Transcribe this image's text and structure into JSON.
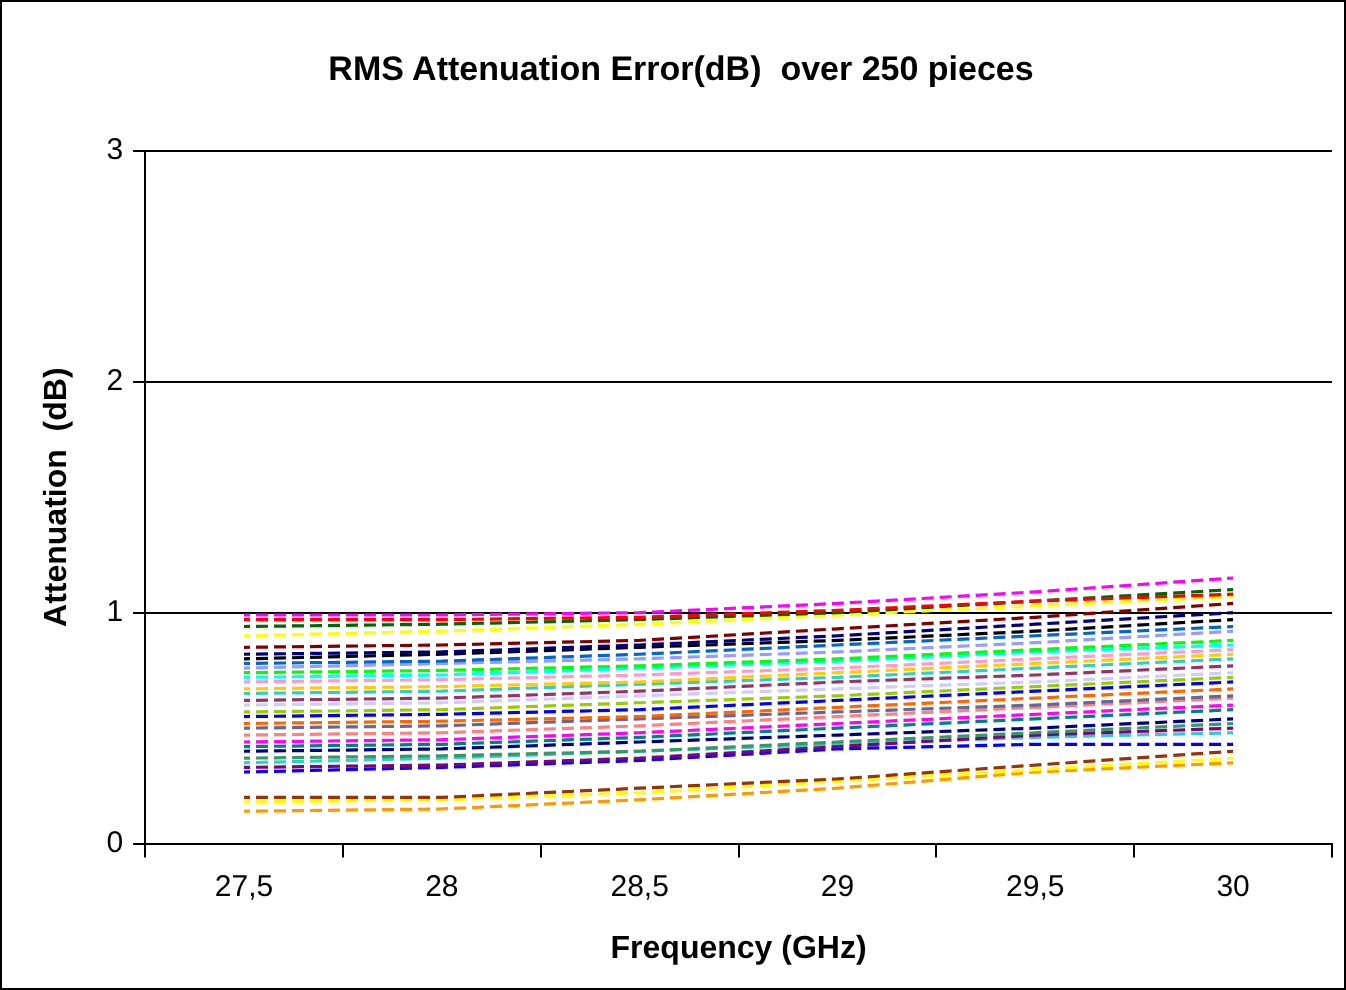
{
  "chart_data": {
    "type": "line",
    "title": "RMS Attenuation Error(dB)  over 250 pieces",
    "xlabel": "Frequency (GHz)",
    "ylabel": "Attenuation  (dB)",
    "categories": [
      "27,5",
      "28",
      "28,5",
      "29",
      "29,5",
      "30"
    ],
    "ylim": [
      0,
      3
    ],
    "yticks": [
      0,
      1,
      2,
      3
    ],
    "grid": "y",
    "legend": false,
    "marker": "none",
    "line_style": "dashed",
    "series": [
      {
        "color": "#ff00ff",
        "values": [
          0.99,
          0.99,
          1.0,
          1.04,
          1.09,
          1.15
        ]
      },
      {
        "color": "#ff0000",
        "values": [
          0.97,
          0.97,
          0.98,
          1.01,
          1.05,
          1.08
        ]
      },
      {
        "color": "#006600",
        "values": [
          0.94,
          0.95,
          0.97,
          1.0,
          1.05,
          1.1
        ]
      },
      {
        "color": "#ffff00",
        "values": [
          0.9,
          0.92,
          0.95,
          0.99,
          1.03,
          1.07
        ]
      },
      {
        "color": "#800000",
        "values": [
          0.85,
          0.86,
          0.88,
          0.93,
          0.98,
          1.04
        ]
      },
      {
        "color": "#000080",
        "values": [
          0.82,
          0.83,
          0.86,
          0.9,
          0.95,
          1.0
        ]
      },
      {
        "color": "#000000",
        "values": [
          0.8,
          0.82,
          0.85,
          0.88,
          0.92,
          0.97
        ]
      },
      {
        "color": "#0066cc",
        "values": [
          0.78,
          0.79,
          0.82,
          0.86,
          0.9,
          0.94
        ]
      },
      {
        "color": "#9999ff",
        "values": [
          0.76,
          0.78,
          0.8,
          0.83,
          0.87,
          0.92
        ]
      },
      {
        "color": "#00ff00",
        "values": [
          0.74,
          0.75,
          0.77,
          0.8,
          0.84,
          0.88
        ]
      },
      {
        "color": "#00ffff",
        "values": [
          0.72,
          0.73,
          0.76,
          0.79,
          0.83,
          0.86
        ]
      },
      {
        "color": "#ff99cc",
        "values": [
          0.7,
          0.71,
          0.73,
          0.76,
          0.8,
          0.84
        ]
      },
      {
        "color": "#ffcc00",
        "values": [
          0.67,
          0.68,
          0.7,
          0.74,
          0.78,
          0.82
        ]
      },
      {
        "color": "#33cccc",
        "values": [
          0.65,
          0.66,
          0.69,
          0.72,
          0.76,
          0.8
        ]
      },
      {
        "color": "#993366",
        "values": [
          0.62,
          0.63,
          0.66,
          0.7,
          0.73,
          0.77
        ]
      },
      {
        "color": "#ccccff",
        "values": [
          0.6,
          0.61,
          0.64,
          0.67,
          0.7,
          0.74
        ]
      },
      {
        "color": "#99cc00",
        "values": [
          0.57,
          0.58,
          0.61,
          0.64,
          0.68,
          0.72
        ]
      },
      {
        "color": "#0000ff",
        "values": [
          0.55,
          0.56,
          0.58,
          0.62,
          0.66,
          0.7
        ]
      },
      {
        "color": "#ff6600",
        "values": [
          0.52,
          0.53,
          0.55,
          0.59,
          0.63,
          0.67
        ]
      },
      {
        "color": "#666699",
        "values": [
          0.5,
          0.51,
          0.54,
          0.57,
          0.6,
          0.64
        ]
      },
      {
        "color": "#ff8080",
        "values": [
          0.47,
          0.48,
          0.51,
          0.55,
          0.59,
          0.63
        ]
      },
      {
        "color": "#ff00ff",
        "values": [
          0.44,
          0.45,
          0.48,
          0.52,
          0.56,
          0.6
        ]
      },
      {
        "color": "#008080",
        "values": [
          0.42,
          0.43,
          0.46,
          0.5,
          0.54,
          0.58
        ]
      },
      {
        "color": "#000080",
        "values": [
          0.4,
          0.41,
          0.44,
          0.47,
          0.5,
          0.54
        ]
      },
      {
        "color": "#339966",
        "values": [
          0.37,
          0.38,
          0.4,
          0.44,
          0.48,
          0.52
        ]
      },
      {
        "color": "#800080",
        "values": [
          0.33,
          0.34,
          0.37,
          0.42,
          0.47,
          0.5
        ]
      },
      {
        "color": "#33cccc",
        "values": [
          0.35,
          0.37,
          0.4,
          0.43,
          0.46,
          0.48
        ]
      },
      {
        "color": "#0000ff",
        "values": [
          0.31,
          0.33,
          0.36,
          0.41,
          0.43,
          0.43
        ]
      },
      {
        "color": "#993300",
        "values": [
          0.2,
          0.2,
          0.24,
          0.28,
          0.34,
          0.4
        ]
      },
      {
        "color": "#ffff00",
        "values": [
          0.18,
          0.19,
          0.22,
          0.27,
          0.32,
          0.37
        ]
      },
      {
        "color": "#ff9900",
        "values": [
          0.14,
          0.15,
          0.19,
          0.24,
          0.31,
          0.35
        ]
      }
    ]
  }
}
